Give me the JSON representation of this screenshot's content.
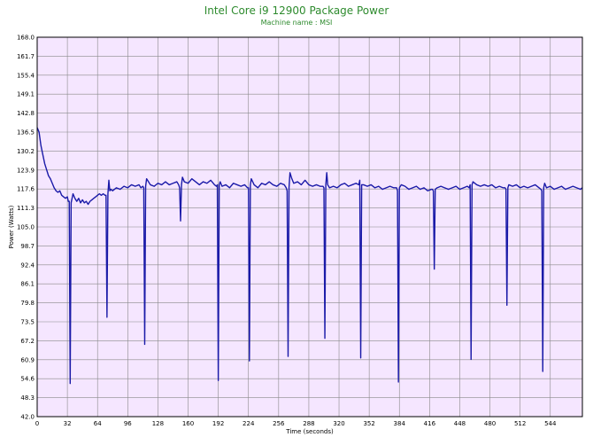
{
  "chart_data": {
    "type": "line",
    "title": "Intel Core i9 12900 Package Power",
    "subtitle": "Machine name : MSI",
    "xlabel": "Time (seconds)",
    "ylabel": "Power (Watts)",
    "xlim": [
      0,
      578
    ],
    "ylim": [
      42.0,
      168.0
    ],
    "x_ticks": [
      0,
      32,
      64,
      96,
      128,
      160,
      192,
      224,
      256,
      288,
      320,
      352,
      384,
      416,
      448,
      480,
      512,
      544
    ],
    "y_ticks": [
      42.0,
      48.3,
      54.6,
      60.9,
      67.2,
      73.5,
      79.8,
      86.1,
      92.4,
      98.7,
      105.0,
      111.3,
      117.6,
      123.9,
      130.2,
      136.5,
      142.8,
      149.1,
      155.4,
      161.7,
      168.0
    ],
    "grid": true,
    "background_color": "#f5e6ff",
    "grid_color": "#8a8a8a",
    "line_color": "#1a1aa8",
    "series": [
      {
        "values": [
          [
            0,
            138
          ],
          [
            2,
            136.5
          ],
          [
            4,
            132
          ],
          [
            6,
            129
          ],
          [
            8,
            126
          ],
          [
            10,
            124
          ],
          [
            12,
            122
          ],
          [
            14,
            121
          ],
          [
            16,
            119.5
          ],
          [
            18,
            118
          ],
          [
            20,
            117
          ],
          [
            22,
            116.5
          ],
          [
            24,
            117
          ],
          [
            26,
            115.5
          ],
          [
            28,
            115
          ],
          [
            30,
            114.5
          ],
          [
            32,
            115
          ],
          [
            33,
            113.5
          ],
          [
            34,
            113.5
          ],
          [
            35,
            53
          ],
          [
            36,
            113
          ],
          [
            38,
            116
          ],
          [
            40,
            114.5
          ],
          [
            42,
            113.5
          ],
          [
            44,
            114.5
          ],
          [
            46,
            113
          ],
          [
            48,
            114
          ],
          [
            50,
            113
          ],
          [
            52,
            113.5
          ],
          [
            54,
            112.5
          ],
          [
            56,
            113.5
          ],
          [
            58,
            114
          ],
          [
            60,
            114.5
          ],
          [
            62,
            115
          ],
          [
            64,
            115.5
          ],
          [
            66,
            116
          ],
          [
            68,
            115.5
          ],
          [
            70,
            116
          ],
          [
            72,
            115.5
          ],
          [
            73,
            115.5
          ],
          [
            74,
            75
          ],
          [
            75,
            116
          ],
          [
            76,
            120.5
          ],
          [
            77,
            117
          ],
          [
            78,
            117.5
          ],
          [
            80,
            117
          ],
          [
            84,
            118
          ],
          [
            88,
            117.5
          ],
          [
            92,
            118.5
          ],
          [
            96,
            118
          ],
          [
            100,
            119
          ],
          [
            104,
            118.5
          ],
          [
            108,
            119
          ],
          [
            110,
            118
          ],
          [
            112,
            118.5
          ],
          [
            113,
            118
          ],
          [
            114,
            66
          ],
          [
            115,
            118.5
          ],
          [
            116,
            121
          ],
          [
            118,
            120
          ],
          [
            120,
            119
          ],
          [
            124,
            118.5
          ],
          [
            128,
            119.5
          ],
          [
            132,
            119
          ],
          [
            136,
            120
          ],
          [
            140,
            119
          ],
          [
            144,
            119.5
          ],
          [
            148,
            120
          ],
          [
            150,
            119
          ],
          [
            151,
            118
          ],
          [
            152,
            107
          ],
          [
            153,
            119
          ],
          [
            154,
            121.5
          ],
          [
            156,
            120
          ],
          [
            160,
            119.5
          ],
          [
            164,
            121
          ],
          [
            168,
            120
          ],
          [
            172,
            119
          ],
          [
            176,
            120
          ],
          [
            180,
            119.5
          ],
          [
            184,
            120.5
          ],
          [
            188,
            119
          ],
          [
            190,
            118.5
          ],
          [
            191,
            119
          ],
          [
            192,
            54
          ],
          [
            193,
            119
          ],
          [
            194,
            120
          ],
          [
            196,
            118.5
          ],
          [
            200,
            119
          ],
          [
            204,
            118
          ],
          [
            208,
            119.5
          ],
          [
            212,
            119
          ],
          [
            216,
            118.5
          ],
          [
            220,
            119
          ],
          [
            223,
            118
          ],
          [
            224,
            118
          ],
          [
            225,
            60.5
          ],
          [
            226,
            119
          ],
          [
            227,
            121
          ],
          [
            230,
            119
          ],
          [
            234,
            118
          ],
          [
            238,
            119.5
          ],
          [
            242,
            119
          ],
          [
            246,
            120
          ],
          [
            250,
            119
          ],
          [
            254,
            118.5
          ],
          [
            258,
            119.5
          ],
          [
            262,
            119
          ],
          [
            264,
            118
          ],
          [
            265,
            117
          ],
          [
            266,
            62
          ],
          [
            267,
            118
          ],
          [
            268,
            123
          ],
          [
            270,
            121
          ],
          [
            272,
            119.5
          ],
          [
            276,
            120
          ],
          [
            280,
            119
          ],
          [
            284,
            120.5
          ],
          [
            288,
            119
          ],
          [
            292,
            118.5
          ],
          [
            296,
            119
          ],
          [
            300,
            118.5
          ],
          [
            303,
            118.5
          ],
          [
            304,
            118
          ],
          [
            305,
            68
          ],
          [
            306,
            119
          ],
          [
            307,
            123
          ],
          [
            308,
            119
          ],
          [
            310,
            118
          ],
          [
            314,
            118.5
          ],
          [
            318,
            118
          ],
          [
            322,
            119
          ],
          [
            326,
            119.5
          ],
          [
            330,
            118.5
          ],
          [
            334,
            119
          ],
          [
            338,
            119.5
          ],
          [
            341,
            119
          ],
          [
            342,
            120.5
          ],
          [
            343,
            61.5
          ],
          [
            344,
            119
          ],
          [
            346,
            119
          ],
          [
            350,
            118.5
          ],
          [
            354,
            119
          ],
          [
            358,
            118
          ],
          [
            362,
            118.5
          ],
          [
            366,
            117.5
          ],
          [
            370,
            118
          ],
          [
            374,
            118.5
          ],
          [
            378,
            118
          ],
          [
            381,
            118
          ],
          [
            382,
            117
          ],
          [
            383,
            53.5
          ],
          [
            384,
            118
          ],
          [
            386,
            119
          ],
          [
            390,
            118.5
          ],
          [
            394,
            117.5
          ],
          [
            398,
            118
          ],
          [
            402,
            118.5
          ],
          [
            406,
            117.5
          ],
          [
            410,
            118
          ],
          [
            414,
            117
          ],
          [
            418,
            117.5
          ],
          [
            419,
            117.5
          ],
          [
            420,
            117
          ],
          [
            421,
            91
          ],
          [
            422,
            117.5
          ],
          [
            424,
            118
          ],
          [
            428,
            118.5
          ],
          [
            432,
            118
          ],
          [
            436,
            117.5
          ],
          [
            440,
            118
          ],
          [
            444,
            118.5
          ],
          [
            448,
            117.5
          ],
          [
            452,
            118
          ],
          [
            456,
            118.5
          ],
          [
            458,
            118
          ],
          [
            459,
            119
          ],
          [
            460,
            61
          ],
          [
            461,
            119
          ],
          [
            462,
            120
          ],
          [
            466,
            119
          ],
          [
            470,
            118.5
          ],
          [
            474,
            119
          ],
          [
            478,
            118.5
          ],
          [
            482,
            119
          ],
          [
            486,
            118
          ],
          [
            490,
            118.5
          ],
          [
            494,
            118
          ],
          [
            496,
            118
          ],
          [
            497,
            117.5
          ],
          [
            498,
            79
          ],
          [
            499,
            118
          ],
          [
            500,
            119
          ],
          [
            504,
            118.5
          ],
          [
            508,
            119
          ],
          [
            512,
            118
          ],
          [
            516,
            118.5
          ],
          [
            520,
            118
          ],
          [
            524,
            118.5
          ],
          [
            528,
            119
          ],
          [
            532,
            118
          ],
          [
            534,
            117.5
          ],
          [
            535,
            117
          ],
          [
            536,
            57
          ],
          [
            537,
            118
          ],
          [
            538,
            119.5
          ],
          [
            540,
            118
          ],
          [
            544,
            118.5
          ],
          [
            548,
            117.5
          ],
          [
            552,
            118
          ],
          [
            556,
            118.5
          ],
          [
            560,
            117.5
          ],
          [
            564,
            118
          ],
          [
            568,
            118.5
          ],
          [
            572,
            118
          ],
          [
            576,
            117.5
          ],
          [
            578,
            118
          ]
        ]
      }
    ]
  }
}
